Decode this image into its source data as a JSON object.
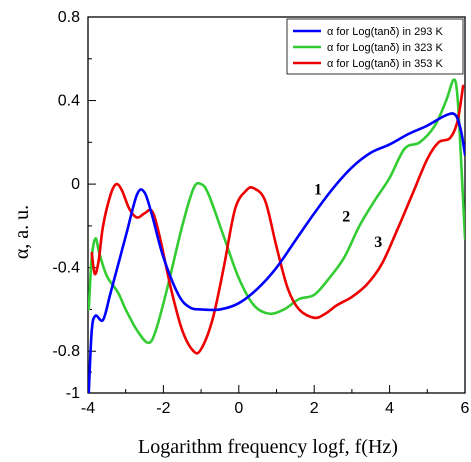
{
  "chart_data": {
    "type": "line",
    "xlabel": "Logarithm frequency logf, f(Hz)",
    "ylabel": "α, a. u.",
    "xlim": [
      -4,
      6
    ],
    "ylim": [
      -1,
      0.8
    ],
    "xticks": [
      {
        "v": -4,
        "label": "-4"
      },
      {
        "v": -2,
        "label": "-2"
      },
      {
        "v": 0,
        "label": "0"
      },
      {
        "v": 2,
        "label": "2"
      },
      {
        "v": 4,
        "label": "4"
      },
      {
        "v": 6,
        "label": "6"
      }
    ],
    "yticks": [
      {
        "v": 0.8,
        "label": "0.8"
      },
      {
        "v": 0.4,
        "label": "0.4"
      },
      {
        "v": 0,
        "label": "0"
      },
      {
        "v": -0.4,
        "label": "-0.4"
      },
      {
        "v": -0.8,
        "label": "-0.8"
      },
      {
        "v": -1,
        "label": "-1"
      }
    ],
    "legend_position": "top-right",
    "grid": false,
    "series": [
      {
        "name": "α for Log(tanδ) in 293 K",
        "color": "#0000ff",
        "annotation": "1",
        "points": [
          [
            -3.98,
            -1.0
          ],
          [
            -3.9,
            -0.7
          ],
          [
            -3.8,
            -0.63
          ],
          [
            -3.6,
            -0.65
          ],
          [
            -3.4,
            -0.52
          ],
          [
            -3.0,
            -0.25
          ],
          [
            -2.7,
            -0.05
          ],
          [
            -2.5,
            -0.04
          ],
          [
            -2.3,
            -0.15
          ],
          [
            -2.0,
            -0.35
          ],
          [
            -1.6,
            -0.53
          ],
          [
            -1.3,
            -0.59
          ],
          [
            -1.0,
            -0.6
          ],
          [
            -0.5,
            -0.6
          ],
          [
            0.0,
            -0.57
          ],
          [
            0.5,
            -0.5
          ],
          [
            1.0,
            -0.4
          ],
          [
            1.5,
            -0.27
          ],
          [
            2.0,
            -0.14
          ],
          [
            2.5,
            -0.02
          ],
          [
            3.0,
            0.08
          ],
          [
            3.5,
            0.15
          ],
          [
            4.0,
            0.19
          ],
          [
            4.5,
            0.24
          ],
          [
            5.0,
            0.28
          ],
          [
            5.5,
            0.33
          ],
          [
            5.75,
            0.33
          ],
          [
            5.9,
            0.25
          ],
          [
            6.0,
            0.14
          ]
        ]
      },
      {
        "name": "α for Log(tanδ) in 323 K",
        "color": "#33cc33",
        "annotation": "2",
        "points": [
          [
            -3.98,
            -0.6
          ],
          [
            -3.9,
            -0.35
          ],
          [
            -3.8,
            -0.26
          ],
          [
            -3.7,
            -0.33
          ],
          [
            -3.5,
            -0.44
          ],
          [
            -3.2,
            -0.52
          ],
          [
            -3.0,
            -0.6
          ],
          [
            -2.7,
            -0.7
          ],
          [
            -2.4,
            -0.76
          ],
          [
            -2.2,
            -0.7
          ],
          [
            -1.9,
            -0.5
          ],
          [
            -1.5,
            -0.2
          ],
          [
            -1.2,
            -0.02
          ],
          [
            -1.0,
            0.0
          ],
          [
            -0.8,
            -0.05
          ],
          [
            -0.4,
            -0.25
          ],
          [
            0.0,
            -0.45
          ],
          [
            0.4,
            -0.58
          ],
          [
            0.8,
            -0.62
          ],
          [
            1.2,
            -0.6
          ],
          [
            1.6,
            -0.55
          ],
          [
            2.0,
            -0.53
          ],
          [
            2.4,
            -0.45
          ],
          [
            2.8,
            -0.35
          ],
          [
            3.2,
            -0.2
          ],
          [
            3.6,
            -0.08
          ],
          [
            4.0,
            0.03
          ],
          [
            4.4,
            0.17
          ],
          [
            4.8,
            0.2
          ],
          [
            5.2,
            0.28
          ],
          [
            5.5,
            0.4
          ],
          [
            5.7,
            0.5
          ],
          [
            5.8,
            0.42
          ],
          [
            5.9,
            0.1
          ],
          [
            6.0,
            -0.26
          ]
        ]
      },
      {
        "name": "α for Log(tanδ) in 353 K",
        "color": "#ee0000",
        "annotation": "3",
        "points": [
          [
            -3.9,
            -0.33
          ],
          [
            -3.82,
            -0.43
          ],
          [
            -3.72,
            -0.37
          ],
          [
            -3.6,
            -0.2
          ],
          [
            -3.4,
            -0.05
          ],
          [
            -3.25,
            0.0
          ],
          [
            -3.1,
            -0.03
          ],
          [
            -2.9,
            -0.12
          ],
          [
            -2.7,
            -0.16
          ],
          [
            -2.5,
            -0.14
          ],
          [
            -2.3,
            -0.13
          ],
          [
            -2.1,
            -0.25
          ],
          [
            -1.8,
            -0.5
          ],
          [
            -1.5,
            -0.7
          ],
          [
            -1.2,
            -0.8
          ],
          [
            -1.0,
            -0.79
          ],
          [
            -0.7,
            -0.65
          ],
          [
            -0.4,
            -0.4
          ],
          [
            -0.1,
            -0.12
          ],
          [
            0.2,
            -0.03
          ],
          [
            0.4,
            -0.02
          ],
          [
            0.7,
            -0.08
          ],
          [
            1.0,
            -0.3
          ],
          [
            1.3,
            -0.5
          ],
          [
            1.6,
            -0.6
          ],
          [
            2.0,
            -0.64
          ],
          [
            2.3,
            -0.62
          ],
          [
            2.6,
            -0.58
          ],
          [
            3.0,
            -0.54
          ],
          [
            3.4,
            -0.48
          ],
          [
            3.8,
            -0.38
          ],
          [
            4.2,
            -0.22
          ],
          [
            4.6,
            -0.05
          ],
          [
            5.0,
            0.12
          ],
          [
            5.3,
            0.2
          ],
          [
            5.6,
            0.22
          ],
          [
            5.8,
            0.3
          ],
          [
            5.95,
            0.47
          ]
        ]
      }
    ]
  }
}
